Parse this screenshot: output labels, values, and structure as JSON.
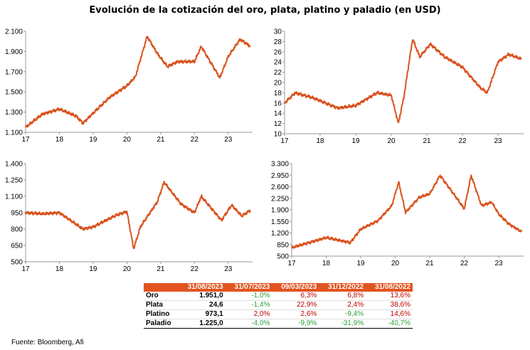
{
  "title": "Evolución de la cotización del oro, plata, platino y paladio (en USD)",
  "line_color": "#d9531e",
  "chart_data": [
    {
      "type": "line",
      "x_tick_labels": [
        "17",
        "18",
        "19",
        "20",
        "21",
        "22",
        "23"
      ],
      "x": [
        2017.0,
        2017.5,
        2018.0,
        2018.5,
        2018.7,
        2019.0,
        2019.5,
        2020.0,
        2020.25,
        2020.6,
        2020.9,
        2021.2,
        2021.5,
        2022.0,
        2022.2,
        2022.75,
        2023.0,
        2023.35,
        2023.66
      ],
      "y": [
        1150,
        1280,
        1330,
        1260,
        1190,
        1290,
        1450,
        1560,
        1650,
        2050,
        1880,
        1750,
        1800,
        1800,
        1950,
        1640,
        1850,
        2020,
        1951
      ],
      "ylim": [
        1100,
        2100
      ],
      "y_tick_labels": [
        "1.100",
        "1.300",
        "1.500",
        "1.700",
        "1.900",
        "2.100"
      ],
      "grid": false
    },
    {
      "type": "line",
      "x_tick_labels": [
        "17",
        "18",
        "19",
        "20",
        "21",
        "22",
        "23"
      ],
      "x": [
        2017.0,
        2017.3,
        2017.8,
        2018.5,
        2019.0,
        2019.6,
        2020.0,
        2020.2,
        2020.35,
        2020.6,
        2020.8,
        2021.1,
        2021.5,
        2022.0,
        2022.5,
        2022.7,
        2023.0,
        2023.3,
        2023.66
      ],
      "y": [
        16,
        18,
        17,
        15,
        15.5,
        18,
        17.5,
        12,
        17,
        28.5,
        25,
        27.5,
        25,
        23,
        19,
        18,
        24,
        25.5,
        24.6
      ],
      "ylim": [
        10,
        30
      ],
      "y_tick_labels": [
        "10",
        "12",
        "14",
        "16",
        "18",
        "20",
        "22",
        "24",
        "26",
        "28",
        "30"
      ],
      "grid": false
    },
    {
      "type": "line",
      "x_tick_labels": [
        "17",
        "18",
        "19",
        "20",
        "21",
        "22",
        "23"
      ],
      "x": [
        2017.0,
        2017.5,
        2018.0,
        2018.7,
        2019.0,
        2019.7,
        2020.0,
        2020.2,
        2020.4,
        2020.9,
        2021.1,
        2021.6,
        2022.0,
        2022.2,
        2022.8,
        2023.1,
        2023.4,
        2023.66
      ],
      "y": [
        950,
        940,
        950,
        800,
        820,
        930,
        960,
        620,
        820,
        1050,
        1230,
        1030,
        950,
        1100,
        880,
        1020,
        920,
        973
      ],
      "ylim": [
        500,
        1400
      ],
      "y_tick_labels": [
        "500",
        "650",
        "800",
        "950",
        "1.100",
        "1.250",
        "1.400"
      ],
      "grid": false
    },
    {
      "type": "line",
      "x_tick_labels": [
        "17",
        "18",
        "19",
        "20",
        "21",
        "22",
        "23"
      ],
      "x": [
        2017.0,
        2017.5,
        2018.0,
        2018.7,
        2019.0,
        2019.5,
        2019.9,
        2020.1,
        2020.3,
        2020.7,
        2021.0,
        2021.3,
        2021.8,
        2022.0,
        2022.2,
        2022.5,
        2022.8,
        2023.0,
        2023.3,
        2023.66
      ],
      "y": [
        750,
        900,
        1050,
        900,
        1300,
        1550,
        2000,
        2700,
        1800,
        2250,
        2350,
        2900,
        2200,
        1900,
        2900,
        2000,
        2100,
        1750,
        1450,
        1225
      ],
      "ylim": [
        500,
        3250
      ],
      "y_tick_labels": [
        "500",
        "850",
        "1.200",
        "1.550",
        "1.900",
        "2.250",
        "2.600",
        "2.950",
        "3.300"
      ],
      "grid": false
    }
  ],
  "table": {
    "headers": [
      "",
      "31/08/2023",
      "31/07/2023",
      "09/03/2023",
      "31/12/2022",
      "31/08/2022"
    ],
    "rows": [
      {
        "name": "Oro",
        "last": "1.951,0",
        "changes": [
          {
            "v": "-1,0%",
            "s": "neg"
          },
          {
            "v": "6,3%",
            "s": "pos"
          },
          {
            "v": "6,8%",
            "s": "pos"
          },
          {
            "v": "13,6%",
            "s": "pos"
          }
        ]
      },
      {
        "name": "Plata",
        "last": "24,6",
        "changes": [
          {
            "v": "-1,4%",
            "s": "neg"
          },
          {
            "v": "22,9%",
            "s": "pos"
          },
          {
            "v": "2,4%",
            "s": "pos"
          },
          {
            "v": "38,6%",
            "s": "pos"
          }
        ]
      },
      {
        "name": "Platino",
        "last": "973,1",
        "changes": [
          {
            "v": "2,0%",
            "s": "pos"
          },
          {
            "v": "2,6%",
            "s": "pos"
          },
          {
            "v": "-9,4%",
            "s": "neg"
          },
          {
            "v": "14,6%",
            "s": "pos"
          }
        ]
      },
      {
        "name": "Paladio",
        "last": "1.225,0",
        "changes": [
          {
            "v": "-4,0%",
            "s": "neg"
          },
          {
            "v": "-9,9%",
            "s": "neg"
          },
          {
            "v": "-31,9%",
            "s": "neg"
          },
          {
            "v": "-40,7%",
            "s": "neg"
          }
        ]
      }
    ]
  },
  "source": "Fuente: Bloomberg, Afi"
}
